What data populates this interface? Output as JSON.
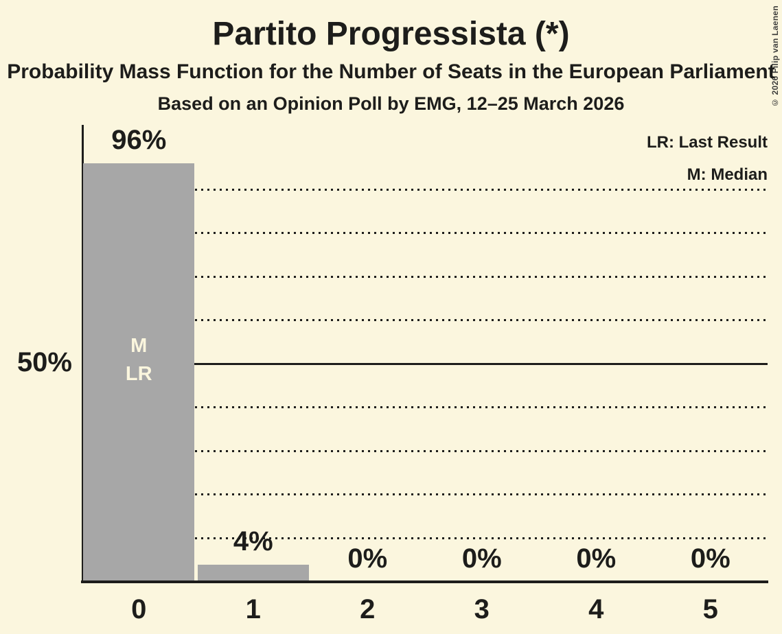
{
  "title": "Partito Progressista (*)",
  "subtitle": "Probability Mass Function for the Number of Seats in the European Parliament",
  "poll_info": "Based on an Opinion Poll by EMG, 12–25 March 2026",
  "copyright": "© 2026 Filip van Laenen",
  "legend": {
    "lr": "LR: Last Result",
    "m": "M: Median"
  },
  "colors": {
    "background": "#FBF6DE",
    "bar": "#A7A7A7",
    "text": "#1D1D1B",
    "bar_annotation_text": "#FBF6DE"
  },
  "chart_data": {
    "type": "bar",
    "title": "Partito Progressista (*)",
    "categories": [
      "0",
      "1",
      "2",
      "3",
      "4",
      "5"
    ],
    "values": [
      96,
      4,
      0,
      0,
      0,
      0
    ],
    "value_labels": [
      "96%",
      "4%",
      "0%",
      "0%",
      "0%",
      "0%"
    ],
    "ylim": [
      0,
      100
    ],
    "y_axis_label": {
      "value": 50,
      "label": "50%"
    },
    "dotted_gridlines_pct": [
      10,
      20,
      30,
      40,
      60,
      70,
      80,
      90
    ],
    "solid_gridline_pct": 50,
    "grid": true,
    "legend_position": "top-right",
    "median_category": "0",
    "last_result_category": "0",
    "bar_annotations": [
      {
        "category": "0",
        "lines": [
          "M",
          "LR"
        ]
      }
    ]
  }
}
